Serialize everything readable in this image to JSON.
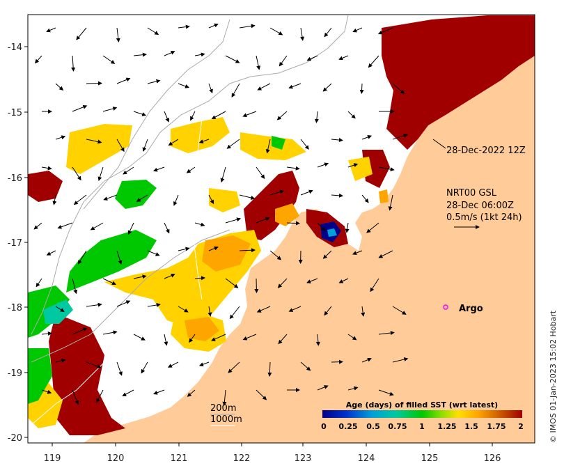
{
  "map": {
    "x_axis": {
      "ticks": [
        "119",
        "120",
        "121",
        "122",
        "123",
        "124",
        "125",
        "126"
      ]
    },
    "y_axis": {
      "ticks": [
        "-14",
        "-15",
        "-16",
        "-17",
        "-18",
        "-19",
        "-20"
      ]
    },
    "sst_date": "28-Dec-2022 12Z",
    "current_product": {
      "line1": "NRT00 GSL",
      "line2": "28-Dec 06:00Z",
      "line3": "0.5m/s (1kt 24h)"
    },
    "argo_label": "Argo",
    "depth_labels": {
      "shallow": "200m",
      "deep": "1000m"
    },
    "credit": "© IMOS 01-Jan-2023 15:02 Hobart",
    "colors": {
      "land": "#ffcc99",
      "ocean": "#ffffff",
      "argo_marker": "#ff00ff"
    }
  },
  "legend": {
    "title": "Age (days) of filled SST (wrt latest)",
    "ticks": [
      "0",
      "0.25",
      "0.5",
      "0.75",
      "1",
      "1.25",
      "1.5",
      "1.75",
      "2"
    ],
    "colors": [
      "#00008b",
      "#0033cc",
      "#00a0d8",
      "#00c8a0",
      "#00c800",
      "#90e000",
      "#ffe000",
      "#ffa500",
      "#d06000",
      "#a00000"
    ]
  }
}
